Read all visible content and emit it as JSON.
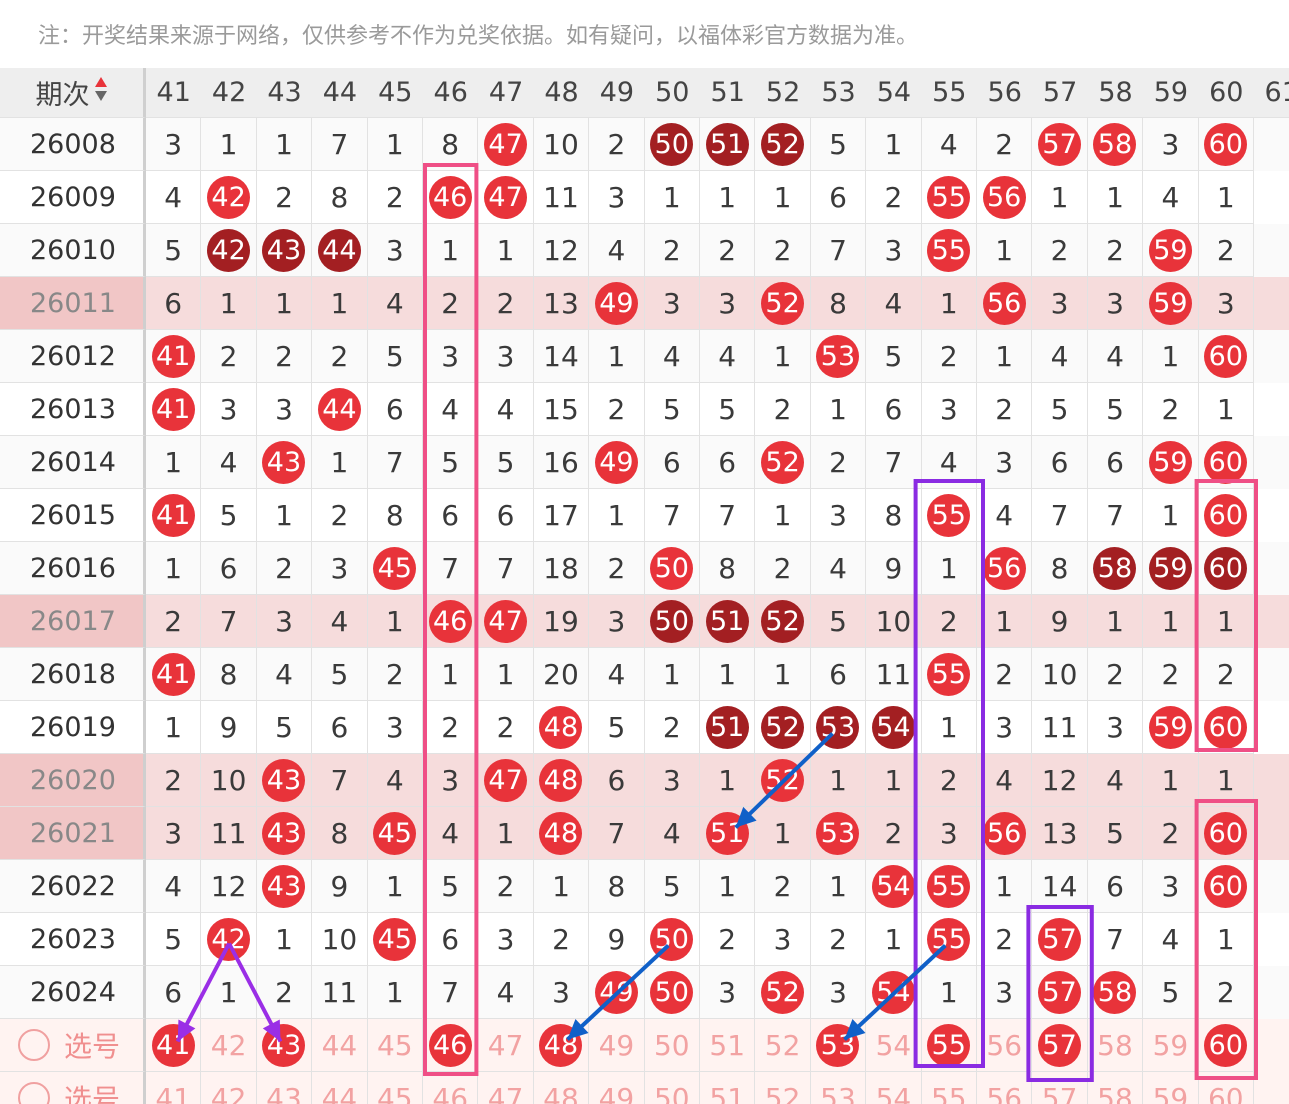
{
  "notice": "注：开奖结果来源于网络，仅供参考不作为兑奖依据。如有疑问，以福体彩官方数据为准。",
  "header": {
    "label": "期次",
    "sort_icon": "sort-updown-icon",
    "cols": [
      "41",
      "42",
      "43",
      "44",
      "45",
      "46",
      "47",
      "48",
      "49",
      "50",
      "51",
      "52",
      "53",
      "54",
      "55",
      "56",
      "57",
      "58",
      "59",
      "60"
    ]
  },
  "rows": [
    {
      "issue": "26008",
      "cells": [
        "3",
        "1",
        "1",
        "7",
        "1",
        "8",
        "47",
        "10",
        "2",
        "50",
        "51",
        "52",
        "5",
        "1",
        "4",
        "2",
        "57",
        "58",
        "3",
        "60"
      ],
      "balls": {
        "47": "r",
        "50": "d",
        "51": "d",
        "52": "d",
        "57": "r",
        "58": "r",
        "60": "r"
      },
      "hl": false
    },
    {
      "issue": "26009",
      "cells": [
        "4",
        "42",
        "2",
        "8",
        "2",
        "46",
        "47",
        "11",
        "3",
        "1",
        "1",
        "1",
        "6",
        "2",
        "55",
        "56",
        "1",
        "1",
        "4",
        "1"
      ],
      "balls": {
        "42": "r",
        "46": "r",
        "47": "r",
        "55": "r",
        "56": "r"
      },
      "hl": false
    },
    {
      "issue": "26010",
      "cells": [
        "5",
        "42",
        "43",
        "44",
        "3",
        "1",
        "1",
        "12",
        "4",
        "2",
        "2",
        "2",
        "7",
        "3",
        "55",
        "1",
        "2",
        "2",
        "59",
        "2"
      ],
      "balls": {
        "42": "d",
        "43": "d",
        "44": "d",
        "55": "r",
        "59": "r"
      },
      "hl": false
    },
    {
      "issue": "26011",
      "cells": [
        "6",
        "1",
        "1",
        "1",
        "4",
        "2",
        "2",
        "13",
        "49",
        "3",
        "3",
        "52",
        "8",
        "4",
        "1",
        "56",
        "3",
        "3",
        "59",
        "3"
      ],
      "balls": {
        "49": "r",
        "52": "r",
        "56": "r",
        "59": "r"
      },
      "hl": true
    },
    {
      "issue": "26012",
      "cells": [
        "41",
        "2",
        "2",
        "2",
        "5",
        "3",
        "3",
        "14",
        "1",
        "4",
        "4",
        "1",
        "53",
        "5",
        "2",
        "1",
        "4",
        "4",
        "1",
        "60"
      ],
      "balls": {
        "41": "r",
        "53": "r",
        "60": "r"
      },
      "hl": false
    },
    {
      "issue": "26013",
      "cells": [
        "41",
        "3",
        "3",
        "44",
        "6",
        "4",
        "4",
        "15",
        "2",
        "5",
        "5",
        "2",
        "1",
        "6",
        "3",
        "2",
        "5",
        "5",
        "2",
        "1"
      ],
      "balls": {
        "41": "r",
        "44": "r"
      },
      "hl": false
    },
    {
      "issue": "26014",
      "cells": [
        "1",
        "4",
        "43",
        "1",
        "7",
        "5",
        "5",
        "16",
        "49",
        "6",
        "6",
        "52",
        "2",
        "7",
        "4",
        "3",
        "6",
        "6",
        "59",
        "60"
      ],
      "balls": {
        "43": "r",
        "49": "r",
        "52": "r",
        "59": "r",
        "60": "r"
      },
      "hl": false
    },
    {
      "issue": "26015",
      "cells": [
        "41",
        "5",
        "1",
        "2",
        "8",
        "6",
        "6",
        "17",
        "1",
        "7",
        "7",
        "1",
        "3",
        "8",
        "55",
        "4",
        "7",
        "7",
        "1",
        "60"
      ],
      "balls": {
        "41": "r",
        "55": "r",
        "60": "r"
      },
      "hl": false
    },
    {
      "issue": "26016",
      "cells": [
        "1",
        "6",
        "2",
        "3",
        "45",
        "7",
        "7",
        "18",
        "2",
        "50",
        "8",
        "2",
        "4",
        "9",
        "1",
        "56",
        "8",
        "58",
        "59",
        "60"
      ],
      "balls": {
        "45": "r",
        "50": "r",
        "56": "r",
        "58": "d",
        "59": "d",
        "60": "d"
      },
      "hl": false
    },
    {
      "issue": "26017",
      "cells": [
        "2",
        "7",
        "3",
        "4",
        "1",
        "46",
        "47",
        "19",
        "3",
        "50",
        "51",
        "52",
        "5",
        "10",
        "2",
        "1",
        "9",
        "1",
        "1",
        "1"
      ],
      "balls": {
        "46": "r",
        "47": "r",
        "50": "d",
        "51": "d",
        "52": "d"
      },
      "hl": true
    },
    {
      "issue": "26018",
      "cells": [
        "41",
        "8",
        "4",
        "5",
        "2",
        "1",
        "1",
        "20",
        "4",
        "1",
        "1",
        "1",
        "6",
        "11",
        "55",
        "2",
        "10",
        "2",
        "2",
        "2"
      ],
      "balls": {
        "41": "r",
        "55": "r"
      },
      "hl": false
    },
    {
      "issue": "26019",
      "cells": [
        "1",
        "9",
        "5",
        "6",
        "3",
        "2",
        "2",
        "48",
        "5",
        "2",
        "51",
        "52",
        "53",
        "54",
        "1",
        "3",
        "11",
        "3",
        "59",
        "60"
      ],
      "balls": {
        "48": "r",
        "51": "d",
        "52": "d",
        "53": "d",
        "54": "d",
        "59": "r",
        "60": "r"
      },
      "hl": false
    },
    {
      "issue": "26020",
      "cells": [
        "2",
        "10",
        "43",
        "7",
        "4",
        "3",
        "47",
        "48",
        "6",
        "3",
        "1",
        "52",
        "1",
        "1",
        "2",
        "4",
        "12",
        "4",
        "1",
        "1"
      ],
      "balls": {
        "43": "r",
        "47": "r",
        "48": "r",
        "52": "r"
      },
      "hl": true
    },
    {
      "issue": "26021",
      "cells": [
        "3",
        "11",
        "43",
        "8",
        "45",
        "4",
        "1",
        "48",
        "7",
        "4",
        "51",
        "1",
        "53",
        "2",
        "3",
        "56",
        "13",
        "5",
        "2",
        "60"
      ],
      "balls": {
        "43": "r",
        "45": "r",
        "48": "r",
        "51": "r",
        "53": "r",
        "56": "r",
        "60": "r"
      },
      "hl": true
    },
    {
      "issue": "26022",
      "cells": [
        "4",
        "12",
        "43",
        "9",
        "1",
        "5",
        "2",
        "1",
        "8",
        "5",
        "1",
        "2",
        "1",
        "54",
        "55",
        "1",
        "14",
        "6",
        "3",
        "60"
      ],
      "balls": {
        "43": "r",
        "54": "r",
        "55": "r",
        "60": "r"
      },
      "hl": false
    },
    {
      "issue": "26023",
      "cells": [
        "5",
        "42",
        "1",
        "10",
        "45",
        "6",
        "3",
        "2",
        "9",
        "50",
        "2",
        "3",
        "2",
        "1",
        "55",
        "2",
        "57",
        "7",
        "4",
        "1"
      ],
      "balls": {
        "42": "r",
        "45": "r",
        "50": "r",
        "55": "r",
        "57": "r"
      },
      "hl": false
    },
    {
      "issue": "26024",
      "cells": [
        "6",
        "1",
        "2",
        "11",
        "1",
        "7",
        "4",
        "3",
        "49",
        "50",
        "3",
        "52",
        "3",
        "54",
        "1",
        "3",
        "57",
        "58",
        "5",
        "2"
      ],
      "balls": {
        "49": "r",
        "50": "r",
        "52": "r",
        "54": "r",
        "57": "r",
        "58": "r"
      },
      "hl": false
    }
  ],
  "select_label": "选号",
  "select_rows": [
    {
      "balls": [
        "41",
        "43",
        "46",
        "48",
        "53",
        "55",
        "57",
        "60"
      ]
    },
    {
      "balls": []
    }
  ],
  "colors": {
    "ball_red": "#e8333a",
    "ball_dark": "#a31f22",
    "highlight_row": "#f6dcdc",
    "pink_box": "#ef4f86",
    "purple_box": "#8a2be2",
    "blue_arrow": "#1060c8",
    "violet_arrow": "#9a2ee6"
  }
}
